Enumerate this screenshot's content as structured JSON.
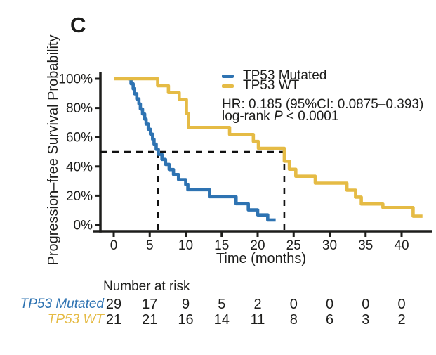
{
  "panel_label": "C",
  "y_axis": {
    "label": "Progression–free Survival Probability",
    "ticks": [
      "0%",
      "20%",
      "40%",
      "60%",
      "80%",
      "100%"
    ],
    "tick_values": [
      0,
      20,
      40,
      60,
      80,
      100
    ],
    "range": [
      0,
      100
    ]
  },
  "x_axis": {
    "label": "Time (months)",
    "ticks": [
      "0",
      "5",
      "10",
      "15",
      "20",
      "25",
      "30",
      "35",
      "40"
    ],
    "tick_values": [
      0,
      5,
      10,
      15,
      20,
      25,
      30,
      35,
      40
    ],
    "range": [
      0,
      43
    ]
  },
  "legend": {
    "items": [
      {
        "label": "TP53 Mutated",
        "color": "#2e73b2"
      },
      {
        "label": "TP53 WT",
        "color": "#e5bb45"
      }
    ]
  },
  "stats": {
    "hr_line": "HR: 0.185 (95%CI: 0.0875–0.393)",
    "logrank_prefix": "log-rank",
    "p_symbol": "P",
    "p_value": "< 0.0001"
  },
  "chart_data": {
    "type": "line",
    "subtype": "kaplan-meier-step",
    "title": "",
    "xlabel": "Time (months)",
    "ylabel": "Progression–free Survival Probability",
    "xlim": [
      0,
      43
    ],
    "ylim": [
      0,
      100
    ],
    "grid": false,
    "legend_position": "top-right-inside",
    "annotations": [
      "HR: 0.185 (95%CI: 0.0875–0.393)",
      "log-rank P < 0.0001"
    ],
    "median_markers": {
      "survival_pct": 50,
      "times_months": [
        6.15,
        23.7
      ],
      "style": "dashed"
    },
    "series": [
      {
        "name": "TP53 Mutated",
        "color": "#2e73b2",
        "steps": [
          [
            2.0,
            100
          ],
          [
            2.4,
            96.6
          ],
          [
            2.7,
            93.1
          ],
          [
            2.9,
            89.7
          ],
          [
            3.2,
            86.2
          ],
          [
            3.5,
            82.8
          ],
          [
            3.7,
            79.3
          ],
          [
            4.0,
            75.9
          ],
          [
            4.3,
            72.4
          ],
          [
            4.5,
            69.0
          ],
          [
            4.8,
            65.5
          ],
          [
            5.1,
            62.1
          ],
          [
            5.4,
            58.6
          ],
          [
            5.6,
            55.2
          ],
          [
            5.9,
            51.7
          ],
          [
            6.2,
            48.3
          ],
          [
            6.7,
            44.8
          ],
          [
            7.2,
            41.4
          ],
          [
            7.7,
            37.9
          ],
          [
            8.3,
            34.5
          ],
          [
            9.0,
            31.0
          ],
          [
            10.0,
            27.6
          ],
          [
            10.3,
            24.1
          ],
          [
            13.3,
            19.3
          ],
          [
            17.0,
            14.5
          ],
          [
            18.7,
            10.3
          ],
          [
            20.0,
            6.9
          ],
          [
            21.4,
            3.4
          ],
          [
            22.5,
            3.4
          ]
        ]
      },
      {
        "name": "TP53 WT",
        "color": "#e5bb45",
        "steps": [
          [
            0,
            100
          ],
          [
            6.1,
            95.2
          ],
          [
            7.6,
            90.5
          ],
          [
            9.1,
            85.7
          ],
          [
            10.1,
            76.2
          ],
          [
            10.4,
            66.7
          ],
          [
            16.1,
            61.9
          ],
          [
            19.4,
            57.1
          ],
          [
            20.1,
            52.4
          ],
          [
            23.7,
            43.6
          ],
          [
            24.4,
            38.1
          ],
          [
            25.3,
            33.3
          ],
          [
            28.0,
            28.6
          ],
          [
            32.4,
            23.8
          ],
          [
            33.6,
            19.0
          ],
          [
            34.4,
            14.3
          ],
          [
            37.4,
            11.9
          ],
          [
            41.6,
            6.0
          ],
          [
            42.9,
            6.0
          ]
        ]
      }
    ]
  },
  "at_risk": {
    "header": "Number at risk",
    "times": [
      0,
      5,
      10,
      15,
      20,
      25,
      30,
      35,
      40
    ],
    "rows": [
      {
        "label": "TP53 Mutated",
        "color": "#2e73b2",
        "values": [
          29,
          17,
          9,
          5,
          2,
          0,
          0,
          0,
          0
        ]
      },
      {
        "label": "TP53 WT",
        "color": "#e5bb45",
        "values": [
          21,
          21,
          16,
          14,
          11,
          8,
          6,
          3,
          2
        ]
      }
    ]
  }
}
